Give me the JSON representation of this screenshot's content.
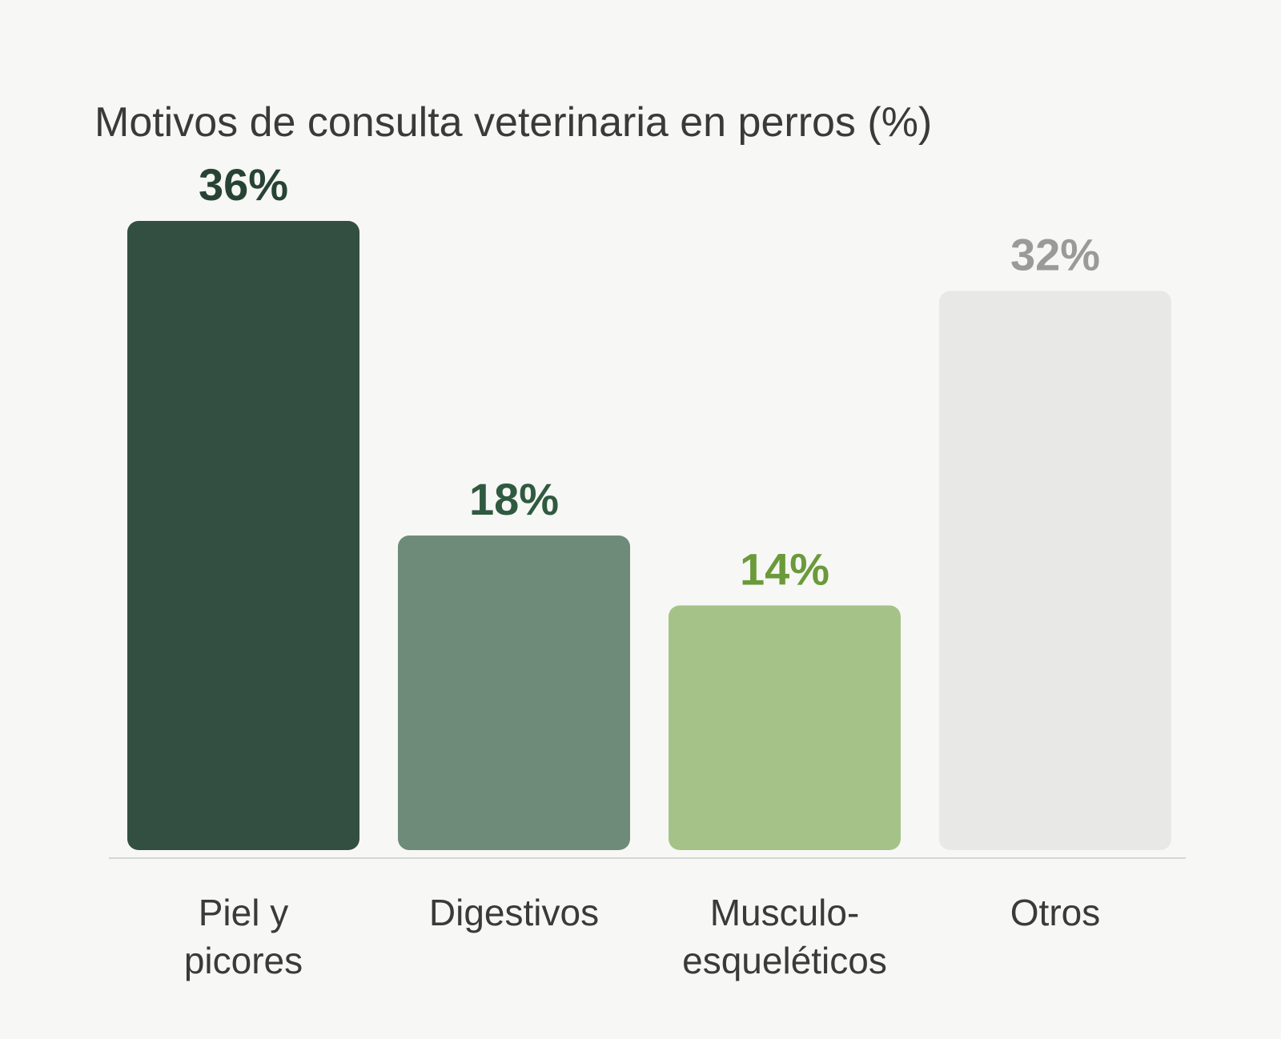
{
  "chart_data": {
    "type": "bar",
    "title": "Motivos de consulta veterinaria en perros (%)",
    "categories": [
      "Piel y picores",
      "Digestivos",
      "Musculo-esqueléticos",
      "Otros"
    ],
    "values": [
      36,
      18,
      14,
      32
    ],
    "value_labels": [
      "36%",
      "18%",
      "14%",
      "32%"
    ],
    "colors": [
      "#334f42",
      "#6e8b7a",
      "#a5c388",
      "#e8e8e6"
    ],
    "label_colors": [
      "#274334",
      "#2f5a3f",
      "#6a9a3a",
      "#9a9a98"
    ]
  }
}
